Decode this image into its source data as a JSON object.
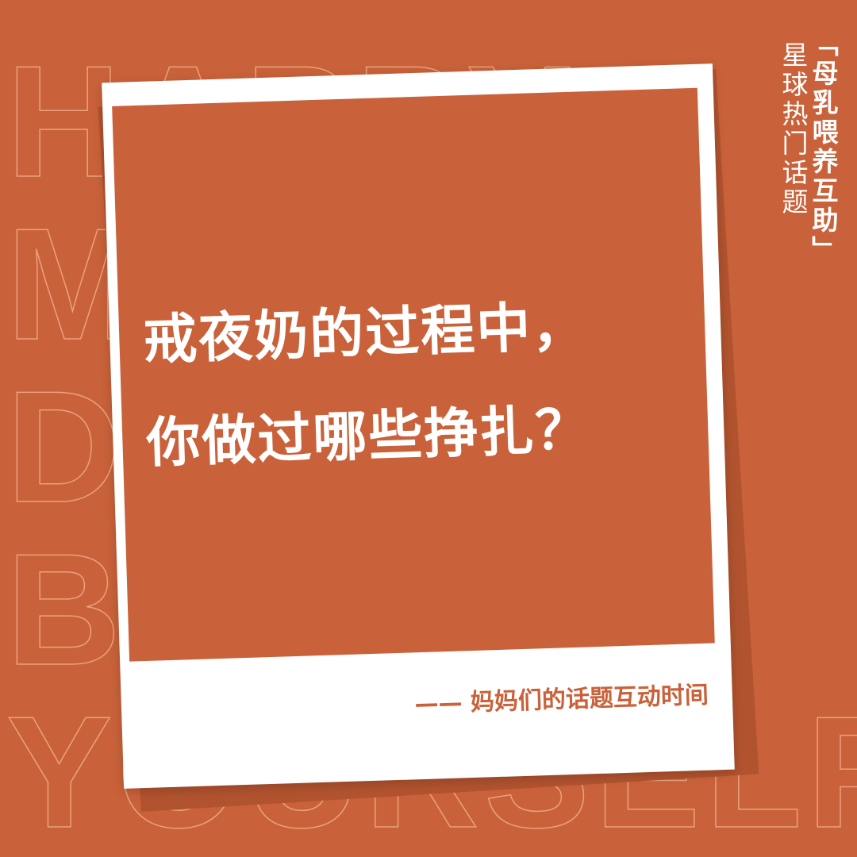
{
  "background_text": [
    "HAPPY",
    "M",
    "D",
    "B",
    "YOURSELF"
  ],
  "tag": {
    "title": "「母乳喂养互助」",
    "subtitle": "星球热门话题"
  },
  "card": {
    "headline": [
      "戒夜奶的过程中，",
      "你做过哪些挣扎？"
    ],
    "caption": "—— 妈妈们的话题互动时间"
  }
}
